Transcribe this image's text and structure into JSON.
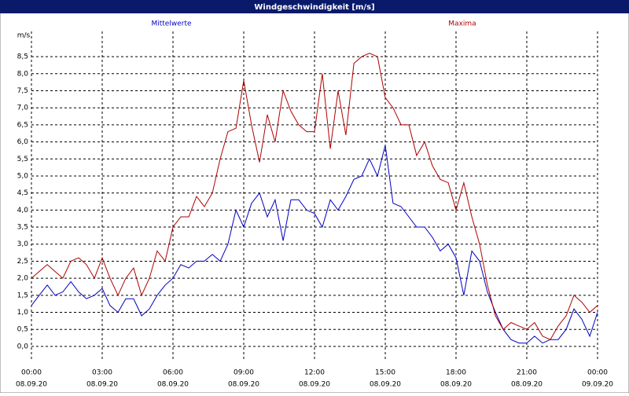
{
  "chart_data": {
    "type": "line",
    "title": "Windgeschwindigkeit [m/s]",
    "y_unit_label": "m/s",
    "x": [
      0,
      0.33,
      0.67,
      1,
      1.33,
      1.67,
      2,
      2.33,
      2.67,
      3,
      3.33,
      3.67,
      4,
      4.33,
      4.67,
      5,
      5.33,
      5.67,
      6,
      6.33,
      6.67,
      7,
      7.33,
      7.67,
      8,
      8.33,
      8.67,
      9,
      9.33,
      9.67,
      10,
      10.33,
      10.67,
      11,
      11.33,
      11.67,
      12,
      12.33,
      12.67,
      13,
      13.33,
      13.67,
      14,
      14.33,
      14.67,
      15,
      15.33,
      15.67,
      16,
      16.33,
      16.67,
      17,
      17.33,
      17.67,
      18,
      18.33,
      18.67,
      19,
      19.33,
      19.67,
      20,
      20.33,
      20.67,
      21,
      21.33,
      21.67,
      22,
      22.33,
      22.67,
      23,
      23.33,
      23.67,
      24
    ],
    "series": [
      {
        "name": "Mittelwerte",
        "color": "#0000c0",
        "values": [
          1.2,
          1.5,
          1.8,
          1.5,
          1.6,
          1.9,
          1.6,
          1.4,
          1.5,
          1.7,
          1.2,
          1.0,
          1.4,
          1.4,
          0.9,
          1.1,
          1.5,
          1.8,
          2.0,
          2.4,
          2.3,
          2.5,
          2.5,
          2.7,
          2.5,
          3.0,
          4.0,
          3.5,
          4.2,
          4.5,
          3.8,
          4.3,
          3.1,
          4.3,
          4.3,
          4.0,
          3.9,
          3.5,
          4.3,
          4.0,
          4.4,
          4.9,
          5.0,
          5.5,
          5.0,
          5.9,
          4.2,
          4.1,
          3.8,
          3.5,
          3.5,
          3.2,
          2.8,
          3.0,
          2.6,
          1.5,
          2.8,
          2.5,
          1.6,
          1.0,
          0.5,
          0.2,
          0.1,
          0.1,
          0.3,
          0.1,
          0.2,
          0.2,
          0.5,
          1.1,
          0.8,
          0.3,
          1.0
        ]
      },
      {
        "name": "Maxima",
        "color": "#b00000",
        "values": [
          2.0,
          2.2,
          2.4,
          2.2,
          2.0,
          2.5,
          2.6,
          2.4,
          2.0,
          2.6,
          2.0,
          1.5,
          2.0,
          2.3,
          1.5,
          2.0,
          2.8,
          2.5,
          3.5,
          3.8,
          3.8,
          4.4,
          4.1,
          4.5,
          5.5,
          6.3,
          6.4,
          7.8,
          6.5,
          5.4,
          6.8,
          6.0,
          7.5,
          6.9,
          6.5,
          6.3,
          6.3,
          8.0,
          5.8,
          7.5,
          6.2,
          8.3,
          8.5,
          8.6,
          8.5,
          7.3,
          7.0,
          6.5,
          6.5,
          5.6,
          6.0,
          5.3,
          4.9,
          4.8,
          4.0,
          4.8,
          3.8,
          3.0,
          1.8,
          0.9,
          0.5,
          0.7,
          0.6,
          0.5,
          0.7,
          0.3,
          0.2,
          0.6,
          0.9,
          1.5,
          1.3,
          1.0,
          1.2
        ]
      }
    ],
    "xlim": [
      0,
      24
    ],
    "xticks": [
      {
        "value": 0,
        "label": "00:00"
      },
      {
        "value": 3,
        "label": "03:00"
      },
      {
        "value": 6,
        "label": "06:00"
      },
      {
        "value": 9,
        "label": "09:00"
      },
      {
        "value": 12,
        "label": "12:00"
      },
      {
        "value": 15,
        "label": "15:00"
      },
      {
        "value": 18,
        "label": "18:00"
      },
      {
        "value": 21,
        "label": "21:00"
      },
      {
        "value": 24,
        "label": "00:00"
      }
    ],
    "xtick_dates": [
      "08.09.20",
      "08.09.20",
      "08.09.20",
      "08.09.20",
      "08.09.20",
      "08.09.20",
      "08.09.20",
      "08.09.20",
      "09.09.20"
    ],
    "ylim": [
      -0.44,
      9.24
    ],
    "yticks": [
      {
        "value": 0,
        "label": "0,0"
      },
      {
        "value": 0.5,
        "label": "0,5"
      },
      {
        "value": 1,
        "label": "1,0"
      },
      {
        "value": 1.5,
        "label": "1,5"
      },
      {
        "value": 2,
        "label": "2,0"
      },
      {
        "value": 2.5,
        "label": "2,5"
      },
      {
        "value": 3,
        "label": "3,0"
      },
      {
        "value": 3.5,
        "label": "3,5"
      },
      {
        "value": 4,
        "label": "4,0"
      },
      {
        "value": 4.5,
        "label": "4,5"
      },
      {
        "value": 5,
        "label": "5,0"
      },
      {
        "value": 5.5,
        "label": "5,5"
      },
      {
        "value": 6,
        "label": "6,0"
      },
      {
        "value": 6.5,
        "label": "6,5"
      },
      {
        "value": 7,
        "label": "7,0"
      },
      {
        "value": 7.5,
        "label": "7,5"
      },
      {
        "value": 8,
        "label": "8,0"
      },
      {
        "value": 8.5,
        "label": "8,5"
      }
    ],
    "grid": true
  }
}
